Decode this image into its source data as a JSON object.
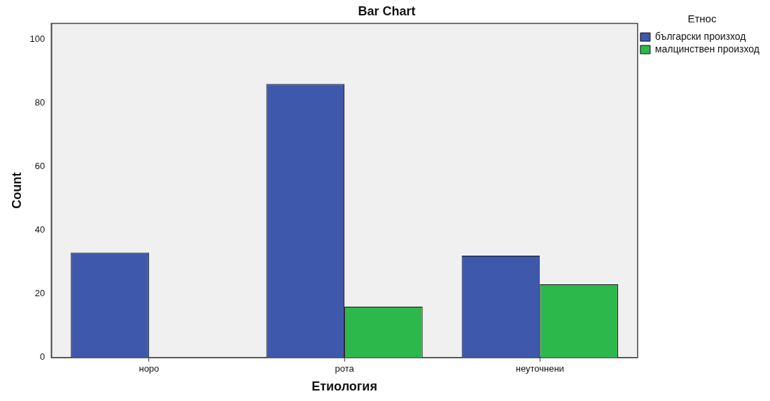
{
  "chart_data": {
    "type": "bar",
    "title": "Bar Chart",
    "xlabel": "Етиология",
    "ylabel": "Count",
    "legend_title": "Етнос",
    "categories": [
      "норо",
      "рота",
      "неуточнени"
    ],
    "series": [
      {
        "name": "български произход",
        "color": "#3e58ab",
        "values": [
          33,
          86,
          32
        ]
      },
      {
        "name": "малцинствен произход",
        "color": "#2db84b",
        "values": [
          null,
          16,
          23
        ]
      }
    ],
    "ylim": [
      0,
      105
    ],
    "yticks": [
      0,
      20,
      40,
      60,
      80,
      100
    ],
    "grid": false,
    "legend": "top right"
  }
}
